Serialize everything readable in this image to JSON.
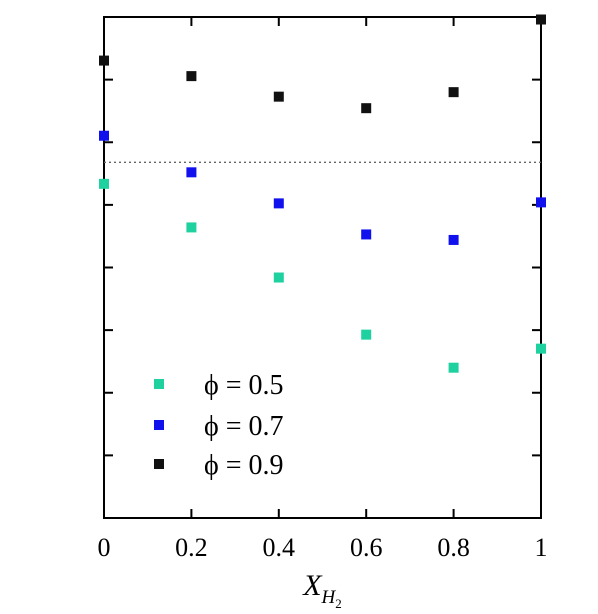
{
  "chart_data": {
    "type": "scatter",
    "title": "",
    "xlabel": {
      "main": "X",
      "sub": "H",
      "subsub": "2"
    },
    "ylabel": "",
    "xlim": [
      0,
      1
    ],
    "ylim": [
      0,
      1
    ],
    "x_ticks": [
      0,
      0.2,
      0.4,
      0.6,
      0.8,
      1
    ],
    "x_tick_labels": [
      "0",
      "0.2",
      "0.4",
      "0.6",
      "0.8",
      "1"
    ],
    "y_ticks": [
      0.125,
      0.25,
      0.375,
      0.5,
      0.625,
      0.75,
      0.875,
      1
    ],
    "reference_line": {
      "y": 0.71,
      "style": "dotted"
    },
    "grid": false,
    "legend_position": "bottom-left",
    "x": [
      0,
      0.2,
      0.4,
      0.6,
      0.8,
      1
    ],
    "series": [
      {
        "label": "ϕ = 0.5",
        "color": "#1fd19f",
        "values": [
          0.667,
          0.58,
          0.48,
          0.366,
          0.3,
          0.338
        ]
      },
      {
        "label": "ϕ = 0.7",
        "color": "#1111ee",
        "values": [
          0.763,
          0.69,
          0.628,
          0.566,
          0.555,
          0.63
        ]
      },
      {
        "label": "ϕ = 0.9",
        "color": "#111111",
        "values": [
          0.913,
          0.882,
          0.841,
          0.818,
          0.85,
          0.995
        ]
      }
    ]
  }
}
